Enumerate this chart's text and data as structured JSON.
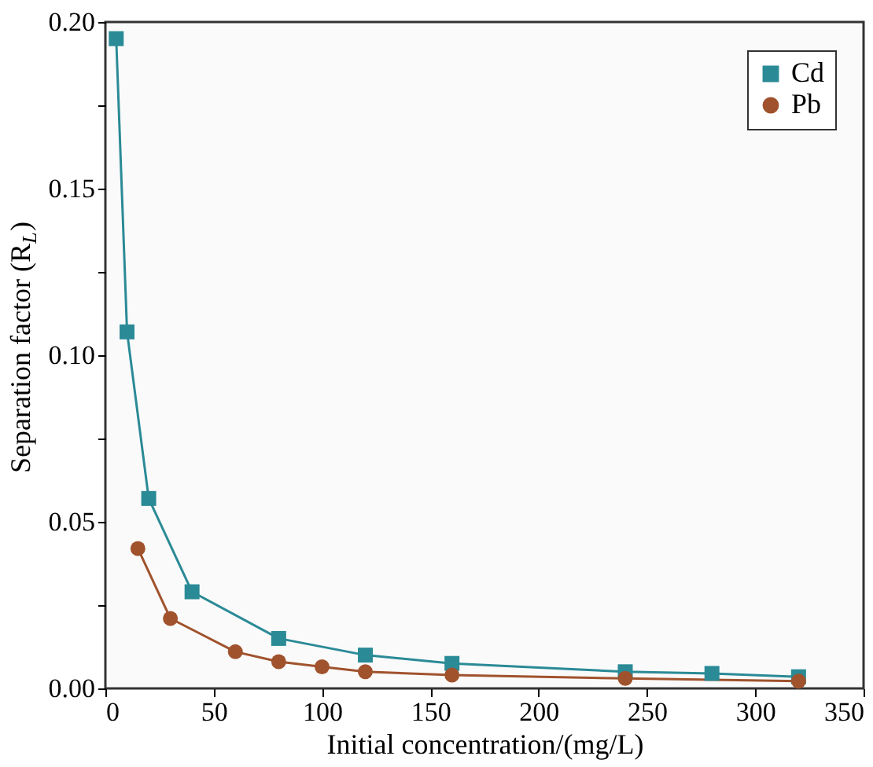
{
  "chart_data": {
    "type": "line",
    "xlabel": "Initial concentration/(mg/L)",
    "ylabel": "Separation factor (R$_{L}$)",
    "xlim": [
      0,
      350
    ],
    "xticks": [
      0,
      50,
      100,
      150,
      200,
      250,
      300,
      350
    ],
    "ylim": [
      0,
      0.2
    ],
    "yticks": [
      {
        "value": 0,
        "label": "0.00"
      },
      {
        "value": 0.025,
        "label": null
      },
      0.05,
      {
        "value": 0.075,
        "label": null
      },
      {
        "value": 0.1,
        "label": "0.10"
      },
      {
        "value": 0.125,
        "label": null
      },
      0.15,
      {
        "value": 0.175,
        "label": null
      },
      {
        "value": 0.2,
        "label": "0.20"
      }
    ],
    "legend": "top right",
    "grid": false,
    "series": [
      {
        "name": "Cd",
        "color": "#2a8a96",
        "marker": "square",
        "x": [
          5,
          10,
          20,
          40,
          80,
          120,
          160,
          240,
          280,
          320
        ],
        "values": [
          0.195,
          0.107,
          0.057,
          0.029,
          0.015,
          0.01,
          0.0075,
          0.005,
          0.0045,
          0.0035
        ]
      },
      {
        "name": "Pb",
        "color": "#a0522d",
        "marker": "circle",
        "x": [
          15,
          30,
          60,
          80,
          100,
          120,
          160,
          240,
          320
        ],
        "values": [
          0.042,
          0.021,
          0.011,
          0.008,
          0.0065,
          0.005,
          0.004,
          0.003,
          0.0022
        ]
      }
    ]
  }
}
